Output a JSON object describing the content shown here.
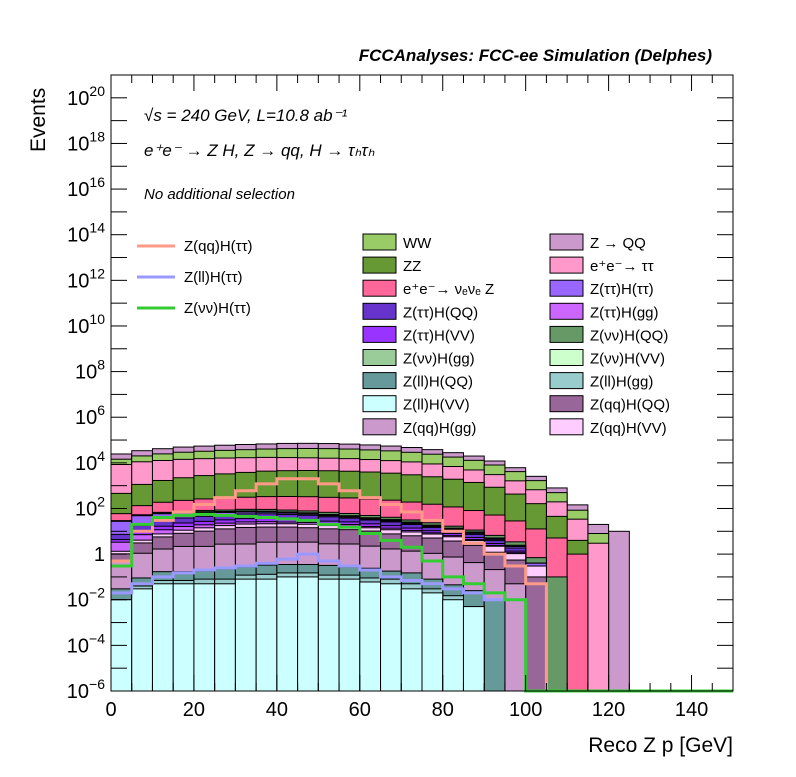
{
  "chart_data": {
    "type": "bar",
    "title": "FCCAnalyses: FCC-ee Simulation (Delphes)",
    "annotations": [
      "√s = 240 GeV, L=10.8 ab⁻¹",
      "e⁺e⁻ → Z H, Z → qq, H → τₕτₕ",
      "No additional selection"
    ],
    "xlabel": "Reco Z p [GeV]",
    "ylabel": "Events",
    "xlim": [
      0,
      150
    ],
    "ylim": [
      1e-06,
      1e+21
    ],
    "yscale": "log",
    "bin_width": 5,
    "x_ticks": [
      0,
      20,
      40,
      60,
      80,
      100,
      120,
      140
    ],
    "y_tick_exponents": [
      -6,
      -4,
      -2,
      0,
      2,
      4,
      6,
      8,
      10,
      12,
      14,
      16,
      18,
      20
    ],
    "grid": false,
    "stacked": [
      {
        "name": "Z(ll)H(VV)",
        "color": "#ccffff",
        "values": [
          0.01,
          0.03,
          0.05,
          0.05,
          0.05,
          0.05,
          0.08,
          0.08,
          0.1,
          0.1,
          0.08,
          0.08,
          0.06,
          0.05,
          0.03,
          0.02,
          0.01,
          0.005,
          0,
          0,
          0,
          0,
          0,
          0,
          0,
          0,
          0,
          0,
          0,
          0
        ]
      },
      {
        "name": "Z(ll)H(gg)",
        "color": "#99cccc",
        "values": [
          0,
          0.01,
          0.02,
          0.02,
          0.03,
          0.03,
          0.04,
          0.05,
          0.05,
          0.05,
          0.04,
          0.04,
          0.03,
          0.03,
          0.02,
          0.01,
          0.005,
          0,
          0,
          0,
          0,
          0,
          0,
          0,
          0,
          0,
          0,
          0,
          0,
          0
        ]
      },
      {
        "name": "Z(ll)H(QQ)",
        "color": "#669999",
        "values": [
          0.02,
          0.05,
          0.1,
          0.1,
          0.1,
          0.15,
          0.15,
          0.2,
          0.2,
          0.2,
          0.2,
          0.15,
          0.15,
          0.1,
          0.1,
          0.05,
          0.03,
          0.02,
          0.01,
          0,
          0,
          0,
          0,
          0,
          0,
          0,
          0,
          0,
          0,
          0
        ]
      },
      {
        "name": "Z(qq)H(gg)",
        "color": "#cc99cc",
        "values": [
          0.5,
          1,
          1.5,
          2,
          2,
          2.5,
          2.5,
          3,
          3,
          3,
          2.5,
          2.5,
          2,
          1.5,
          1.2,
          1,
          0.7,
          0.4,
          0.2,
          0.05,
          0,
          0,
          0,
          0,
          0,
          0,
          0,
          0,
          0,
          0
        ]
      },
      {
        "name": "Z(qq)H(QQ)",
        "color": "#996699",
        "values": [
          0.5,
          2,
          4,
          6,
          8,
          10,
          12,
          12,
          12,
          11,
          10,
          9,
          8,
          6,
          5,
          4,
          3,
          2,
          1,
          0.5,
          0.1,
          0,
          0,
          0,
          0,
          0,
          0,
          0,
          0,
          0
        ]
      },
      {
        "name": "Z(qq)H(VV)",
        "color": "#ffccff",
        "values": [
          0.3,
          1,
          2,
          3,
          4,
          5,
          6,
          6,
          6,
          6,
          5,
          5,
          4,
          4,
          3,
          2.5,
          2,
          1.5,
          1,
          0.5,
          0.2,
          0,
          0,
          0,
          0,
          0,
          0,
          0,
          0,
          0
        ]
      },
      {
        "name": "Z(ττ)H(gg)",
        "color": "#cc66ff",
        "values": [
          2,
          3,
          4,
          5,
          5,
          5,
          5,
          5,
          4,
          4,
          3,
          3,
          2,
          2,
          1.5,
          1,
          0.7,
          0.4,
          0.2,
          0.1,
          0,
          0,
          0,
          0,
          0,
          0,
          0,
          0,
          0,
          0
        ]
      },
      {
        "name": "Z(ττ)H(VV)",
        "color": "#9933ff",
        "values": [
          1,
          3,
          5,
          7,
          8,
          9,
          10,
          10,
          9,
          8,
          7,
          6,
          5,
          4,
          3,
          2,
          1.5,
          1,
          0.5,
          0.2,
          0,
          0,
          0,
          0,
          0,
          0,
          0,
          0,
          0,
          0
        ]
      },
      {
        "name": "Z(ττ)H(QQ)",
        "color": "#6633cc",
        "values": [
          3,
          8,
          12,
          15,
          18,
          20,
          22,
          22,
          20,
          18,
          15,
          12,
          10,
          8,
          6,
          4,
          3,
          2,
          1,
          0.5,
          0,
          0,
          0,
          0,
          0,
          0,
          0,
          0,
          0,
          0
        ]
      },
      {
        "name": "Z(ττ)H(ττ)",
        "color": "#9966ff",
        "values": [
          20,
          30,
          30,
          25,
          20,
          15,
          12,
          10,
          8,
          6,
          5,
          4,
          3,
          2.5,
          2,
          1.5,
          1,
          0.8,
          0.5,
          0.3,
          0.1,
          0,
          0,
          0,
          0,
          0,
          0,
          0,
          0,
          0
        ]
      },
      {
        "name": "Z(νν)H(VV)",
        "color": "#ccffcc",
        "values": [
          0.5,
          1,
          2,
          2.5,
          3,
          3,
          3,
          3,
          3,
          3,
          3,
          2.5,
          2,
          2,
          1.5,
          1,
          0.8,
          0.5,
          0.3,
          0.1,
          0,
          0,
          0,
          0,
          0,
          0,
          0,
          0,
          0,
          0
        ]
      },
      {
        "name": "Z(νν)H(gg)",
        "color": "#99cc99",
        "values": [
          0.5,
          1,
          2,
          3,
          4,
          4,
          5,
          5,
          5,
          5,
          4,
          4,
          3,
          3,
          2,
          1.5,
          1,
          0.7,
          0.4,
          0.2,
          0,
          0,
          0,
          0,
          0,
          0,
          0,
          0,
          0,
          0
        ]
      },
      {
        "name": "Z(νν)H(QQ)",
        "color": "#669966",
        "values": [
          1,
          3,
          5,
          8,
          10,
          12,
          14,
          15,
          15,
          14,
          13,
          12,
          10,
          8,
          6,
          5,
          3,
          2,
          1.5,
          1,
          0.3,
          0.1,
          0,
          0,
          0,
          0,
          0,
          0,
          0,
          0
        ]
      },
      {
        "name": "e⁺e⁻→ νₑνₑ Z",
        "color": "#ff6699",
        "values": [
          30,
          80,
          120,
          150,
          180,
          200,
          220,
          240,
          250,
          250,
          240,
          230,
          210,
          190,
          160,
          130,
          100,
          70,
          45,
          25,
          12,
          5,
          1,
          0,
          0,
          0,
          0,
          0,
          0,
          0
        ]
      },
      {
        "name": "ZZ",
        "color": "#669933",
        "values": [
          400,
          1000,
          1500,
          2000,
          2500,
          3000,
          3500,
          4000,
          4200,
          4300,
          4200,
          4000,
          3700,
          3300,
          2800,
          2300,
          1800,
          1300,
          800,
          400,
          150,
          40,
          3,
          0,
          0,
          0,
          0,
          0,
          0,
          0
        ]
      },
      {
        "name": "e⁺e⁻→ ττ",
        "color": "#ff99cc",
        "values": [
          8000,
          10000,
          11000,
          12000,
          12500,
          13000,
          13000,
          13000,
          12500,
          12000,
          11500,
          11000,
          10000,
          9000,
          8000,
          6500,
          5000,
          3500,
          2200,
          1200,
          500,
          150,
          30,
          3,
          0,
          0,
          0,
          0,
          0,
          0
        ]
      },
      {
        "name": "WW",
        "color": "#99cc66",
        "values": [
          6000,
          9000,
          12000,
          15000,
          17000,
          19000,
          21000,
          23000,
          25000,
          26000,
          26000,
          25000,
          23000,
          21000,
          18000,
          15000,
          11000,
          8000,
          5000,
          2500,
          1000,
          300,
          50,
          5,
          0,
          0,
          0,
          0,
          0,
          0
        ]
      },
      {
        "name": "Z → QQ",
        "color": "#cc99cc",
        "values": [
          10000,
          14000,
          17000,
          20000,
          22000,
          24000,
          26000,
          27000,
          29000,
          29000,
          28000,
          26000,
          24000,
          21000,
          18000,
          14000,
          10000,
          7000,
          4000,
          2000,
          900,
          300,
          60,
          12,
          10,
          0,
          0,
          0,
          0,
          0
        ]
      }
    ],
    "overlays": [
      {
        "name": "Z(qq)H(ττ)",
        "color": "#ff9988",
        "values": [
          0.5,
          10,
          30,
          70,
          150,
          300,
          600,
          1200,
          2000,
          2000,
          1200,
          600,
          300,
          150,
          70,
          30,
          10,
          3,
          1,
          0.3,
          0.05,
          0,
          0,
          0,
          0,
          0,
          0,
          0,
          0,
          0
        ]
      },
      {
        "name": "Z(ll)H(ττ)",
        "color": "#9999ff",
        "values": [
          0.02,
          0.05,
          0.1,
          0.15,
          0.2,
          0.25,
          0.3,
          0.4,
          0.6,
          1,
          0.5,
          0.3,
          0.2,
          0.1,
          0.07,
          0.05,
          0.03,
          0.02,
          0.01,
          0.01,
          0,
          0,
          0,
          0,
          0,
          0,
          0,
          0,
          0,
          0
        ]
      },
      {
        "name": "Z(νν)H(ττ)",
        "color": "#33cc33",
        "values": [
          0.3,
          20,
          40,
          50,
          55,
          50,
          45,
          40,
          35,
          30,
          20,
          15,
          8,
          4,
          2,
          0.5,
          0.1,
          0.05,
          0.02,
          0.01,
          0,
          0,
          0,
          0,
          0,
          0,
          0,
          0,
          0,
          0
        ]
      }
    ],
    "legend_lines": [
      "Z(qq)H(ττ)",
      "Z(ll)H(ττ)",
      "Z(νν)H(ττ)"
    ],
    "legend_fills": [
      "WW",
      "Z → QQ",
      "ZZ",
      "e⁺e⁻→ ττ",
      "e⁺e⁻→ νₑνₑ Z",
      "Z(ττ)H(ττ)",
      "Z(ττ)H(QQ)",
      "Z(ττ)H(gg)",
      "Z(ττ)H(VV)",
      "Z(νν)H(QQ)",
      "Z(νν)H(gg)",
      "Z(νν)H(VV)",
      "Z(ll)H(QQ)",
      "Z(ll)H(gg)",
      "Z(ll)H(VV)",
      "Z(qq)H(QQ)",
      "Z(qq)H(gg)",
      "Z(qq)H(VV)"
    ],
    "legend_placement": "top"
  }
}
